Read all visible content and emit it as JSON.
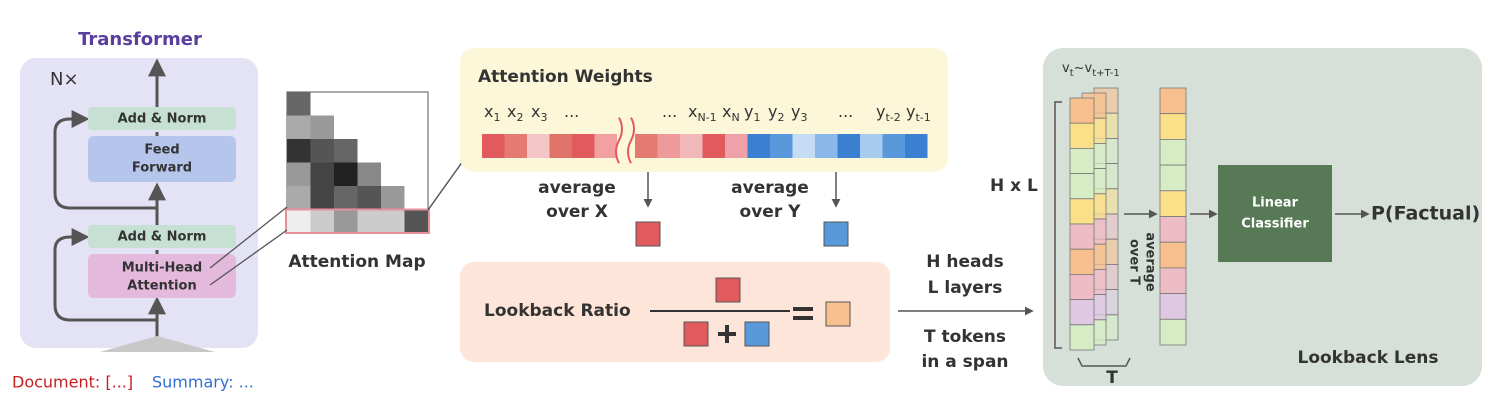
{
  "transformer": {
    "title": "Transformer",
    "repeat": "N×",
    "add_norm_top": "Add & Norm",
    "feed_forward": [
      "Feed",
      "Forward"
    ],
    "add_norm_bottom": "Add & Norm",
    "attention": [
      "Multi-Head",
      "Attention"
    ]
  },
  "input": {
    "document": "Document: [...]",
    "summary": "Summary: ..."
  },
  "attention_map": {
    "label": "Attention Map"
  },
  "attention_weights": {
    "title": "Attention Weights",
    "tokens": [
      {
        "base": "x",
        "sub": "1"
      },
      {
        "base": "x",
        "sub": "2"
      },
      {
        "base": "x",
        "sub": "3"
      },
      {
        "base": "..."
      },
      {
        "base": "..."
      },
      {
        "base": "x",
        "sub": "N-1"
      },
      {
        "base": "x",
        "sub": "N"
      },
      {
        "base": "y",
        "sub": "1"
      },
      {
        "base": "y",
        "sub": "2"
      },
      {
        "base": "y",
        "sub": "3"
      },
      {
        "base": "..."
      },
      {
        "base": "y",
        "sub": "t-2"
      },
      {
        "base": "y",
        "sub": "t-1"
      }
    ],
    "average_x": [
      "average",
      "over X"
    ],
    "average_y": [
      "average",
      "over Y"
    ]
  },
  "lookback_ratio": {
    "label": "Lookback Ratio"
  },
  "dimensions": {
    "heads": "H heads",
    "layers": "L layers",
    "tokens": [
      "T tokens",
      "in a span"
    ]
  },
  "lookback_lens": {
    "title": "Lookback Lens",
    "features_label": {
      "base": "v",
      "sub": "t",
      "sep": "~",
      "base2": "v",
      "sub2": "t+T-1"
    },
    "stack_label": "H x L",
    "span_label": "T",
    "average": [
      "average",
      "over T"
    ],
    "classifier": [
      "Linear",
      "Classifier"
    ],
    "output": "P(Factual)"
  }
}
